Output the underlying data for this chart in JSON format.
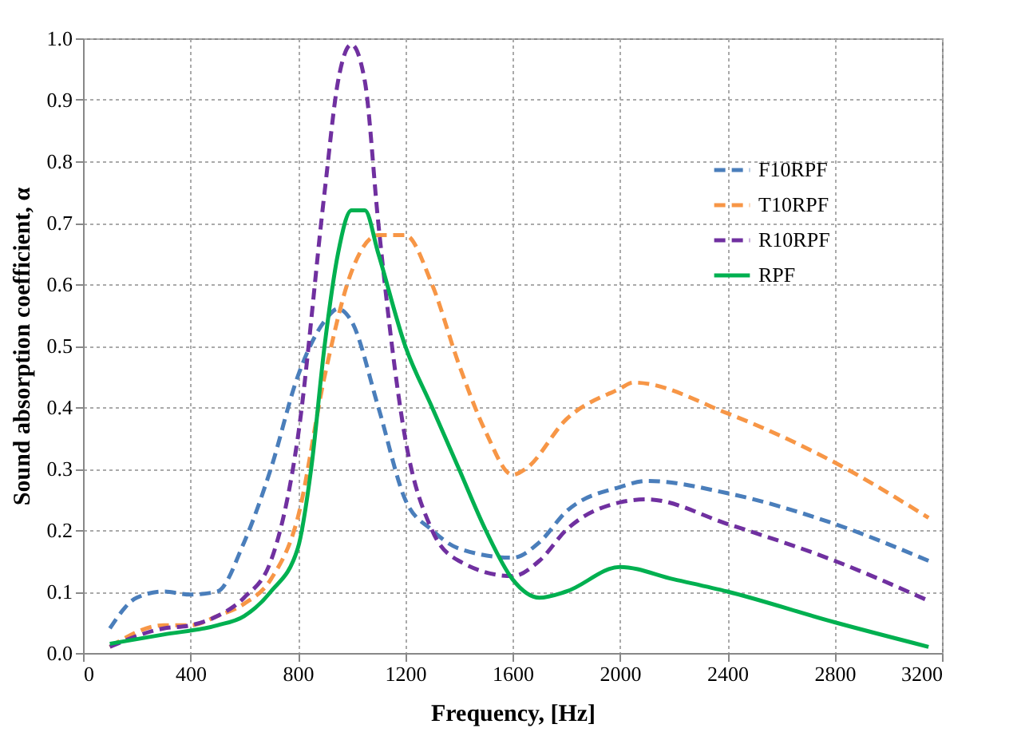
{
  "chart_data": {
    "type": "line",
    "xlabel": "Frequency, [Hz]",
    "ylabel": "Sound absorption coefficient, α",
    "xlim": [
      0,
      3200
    ],
    "xticks": [
      0,
      400,
      800,
      1200,
      1600,
      2000,
      2400,
      2800,
      3200
    ],
    "ylim": [
      0,
      1
    ],
    "yticks": [
      {
        "value": 0,
        "label": "0.0"
      },
      0.1,
      0.2,
      0.3,
      0.4,
      0.5,
      0.6,
      0.7,
      0.8,
      0.9,
      {
        "value": 1,
        "label": "1.0"
      }
    ],
    "grid": true,
    "legend": "top right",
    "series": [
      {
        "name": "F10RPF",
        "color": "#4a7ebb",
        "line_style": "dashed",
        "x": [
          100,
          200,
          300,
          400,
          500,
          600,
          700,
          800,
          900,
          950,
          1000,
          1100,
          1200,
          1300,
          1400,
          1600,
          1700,
          1800,
          2000,
          2100,
          2400,
          2800,
          3150
        ],
        "values": [
          0.04,
          0.09,
          0.1,
          0.095,
          0.1,
          0.18,
          0.3,
          0.45,
          0.54,
          0.56,
          0.54,
          0.4,
          0.25,
          0.2,
          0.17,
          0.155,
          0.18,
          0.23,
          0.27,
          0.28,
          0.26,
          0.21,
          0.15
        ]
      },
      {
        "name": "T10RPF",
        "color": "#f79646",
        "line_style": "dashed",
        "x": [
          100,
          300,
          400,
          500,
          600,
          700,
          800,
          900,
          1000,
          1100,
          1200,
          1300,
          1400,
          1500,
          1600,
          1650,
          1800,
          2000,
          2050,
          2400,
          2800,
          3150
        ],
        "values": [
          0.01,
          0.045,
          0.045,
          0.06,
          0.08,
          0.12,
          0.22,
          0.45,
          0.62,
          0.68,
          0.68,
          0.6,
          0.47,
          0.36,
          0.29,
          0.3,
          0.38,
          0.43,
          0.44,
          0.39,
          0.31,
          0.22
        ]
      },
      {
        "name": "R10RPF",
        "color": "#7030a0",
        "line_style": "dashed",
        "x": [
          100,
          300,
          400,
          500,
          600,
          700,
          800,
          900,
          950,
          1000,
          1050,
          1100,
          1200,
          1300,
          1400,
          1600,
          1700,
          1800,
          2000,
          2100,
          2400,
          2800,
          3150
        ],
        "values": [
          0.01,
          0.04,
          0.045,
          0.06,
          0.09,
          0.15,
          0.35,
          0.75,
          0.93,
          0.99,
          0.93,
          0.7,
          0.35,
          0.2,
          0.15,
          0.125,
          0.15,
          0.2,
          0.245,
          0.25,
          0.21,
          0.15,
          0.085
        ]
      },
      {
        "name": "RPF",
        "color": "#00b050",
        "line_style": "solid",
        "x": [
          100,
          300,
          500,
          600,
          700,
          800,
          850,
          900,
          950,
          1000,
          1050,
          1100,
          1200,
          1300,
          1400,
          1500,
          1600,
          1700,
          1800,
          2000,
          2200,
          2400,
          2800,
          3150
        ],
        "values": [
          0.015,
          0.03,
          0.045,
          0.06,
          0.1,
          0.17,
          0.3,
          0.5,
          0.65,
          0.72,
          0.72,
          0.65,
          0.5,
          0.4,
          0.3,
          0.2,
          0.12,
          0.09,
          0.1,
          0.14,
          0.12,
          0.1,
          0.05,
          0.01
        ]
      }
    ]
  }
}
